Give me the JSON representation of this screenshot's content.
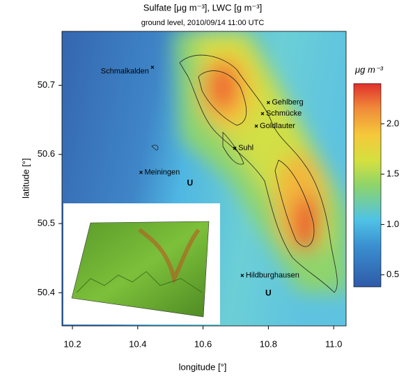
{
  "chart_data": {
    "type": "scatter",
    "title": "Sulfate [μg m⁻³], LWC [g m⁻³]",
    "subtitle": "ground level, 2010/09/14 11:00 UTC",
    "x_label": "longitude [°]",
    "y_label": "latitude [°]",
    "xlim": [
      10.168,
      11.038
    ],
    "ylim": [
      50.352,
      50.778
    ],
    "xticks": [
      10.2,
      10.4,
      10.6,
      10.8,
      {
        "value": 11.0,
        "label": "11.0"
      }
    ],
    "yticks": [
      50.4,
      50.5,
      50.6,
      50.7
    ],
    "places": [
      {
        "name": "Schmalkalden",
        "lon": 10.445,
        "lat": 50.726
      },
      {
        "name": "Gehlberg",
        "lon": 10.8,
        "lat": 50.675
      },
      {
        "name": "Schmücke",
        "lon": 10.782,
        "lat": 50.659
      },
      {
        "name": "Goldlauter",
        "lon": 10.763,
        "lat": 50.641
      },
      {
        "name": "Suhl",
        "lon": 10.697,
        "lat": 50.609
      },
      {
        "name": "Meiningen",
        "lon": 10.41,
        "lat": 50.574
      },
      {
        "name": "Hildburghausen",
        "lon": 10.72,
        "lat": 50.425
      }
    ],
    "markers": [
      {
        "label": "U",
        "lon": 10.56,
        "lat": 50.558
      },
      {
        "label": "U",
        "lon": 10.8,
        "lat": 50.399
      }
    ],
    "colorbar": {
      "label": "μg m⁻³",
      "lim": [
        0.38,
        2.4
      ],
      "ticks": [
        0.5,
        {
          "value": 1.0,
          "label": "1.0"
        },
        1.5,
        {
          "value": 2.0,
          "label": "2.0"
        }
      ]
    }
  }
}
